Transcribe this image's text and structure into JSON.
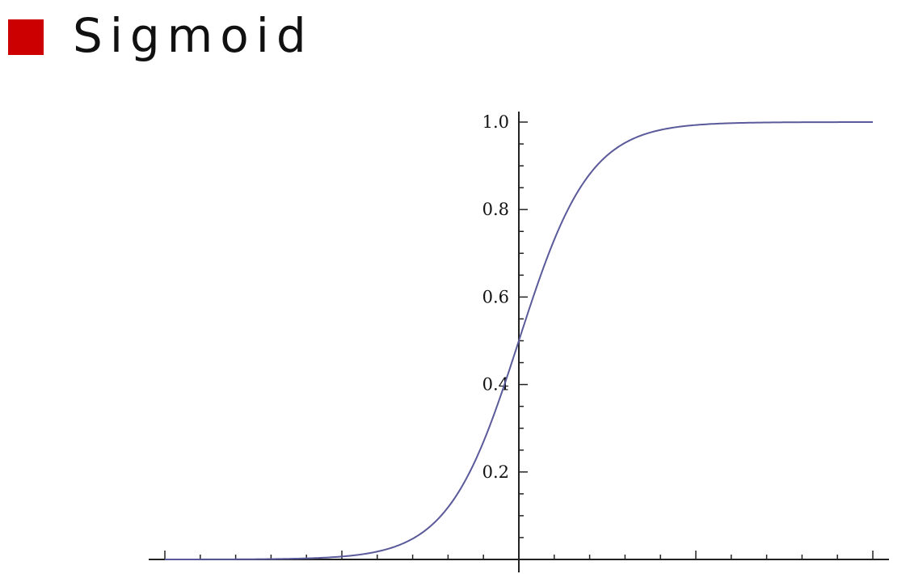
{
  "header": {
    "title": "Sigmoid",
    "bullet_color": "#cc0000"
  },
  "chart_data": {
    "type": "line",
    "title": "",
    "xlabel": "",
    "ylabel": "",
    "function": "sigmoid",
    "xlim": [
      -10,
      10
    ],
    "ylim": [
      0,
      1
    ],
    "x_minor_tick_step": 1,
    "y_ticks": [
      {
        "value": 0.2,
        "label": "0.2"
      },
      {
        "value": 0.4,
        "label": "0.4"
      },
      {
        "value": 0.6,
        "label": "0.6"
      },
      {
        "value": 0.8,
        "label": "0.8"
      },
      {
        "value": 1.0,
        "label": "1.0"
      }
    ],
    "y_minor_tick_step": 0.05,
    "series": [
      {
        "color": "#5a5a9a",
        "x": [
          -10,
          -9,
          -8,
          -7,
          -6,
          -5,
          -4,
          -3,
          -2,
          -1,
          0,
          1,
          2,
          3,
          4,
          5,
          6,
          7,
          8,
          9,
          10
        ],
        "y": [
          4.54e-05,
          0.000123,
          0.000335,
          0.000911,
          0.00247,
          0.00669,
          0.018,
          0.0474,
          0.119,
          0.269,
          0.5,
          0.731,
          0.881,
          0.953,
          0.982,
          0.993,
          0.9975,
          0.9991,
          0.99966,
          0.99988,
          0.99995
        ]
      }
    ],
    "grid": false,
    "legend": "none"
  }
}
